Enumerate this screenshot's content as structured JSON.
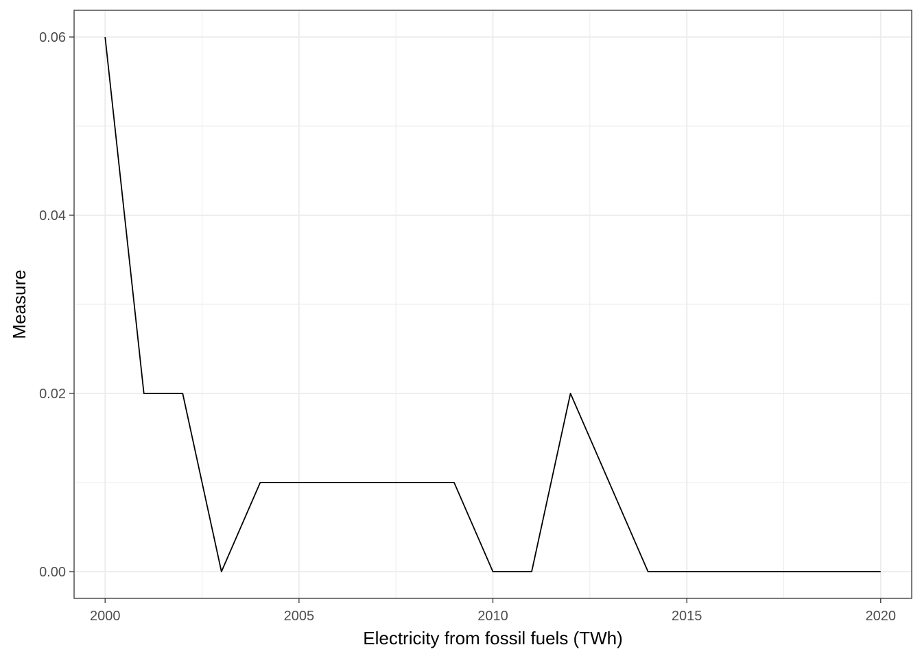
{
  "chart_data": {
    "type": "line",
    "title": "",
    "xlabel": "Electricity from fossil fuels (TWh)",
    "ylabel": "Measure",
    "x": [
      2000,
      2001,
      2002,
      2003,
      2004,
      2005,
      2006,
      2007,
      2008,
      2009,
      2010,
      2011,
      2012,
      2013,
      2014,
      2015,
      2016,
      2017,
      2018,
      2019,
      2020
    ],
    "series": [
      {
        "values": [
          0.06,
          0.02,
          0.02,
          0.0,
          0.01,
          0.01,
          0.01,
          0.01,
          0.01,
          0.01,
          0.0,
          0.0,
          0.02,
          0.01,
          0.0,
          0.0,
          0.0,
          0.0,
          0.0,
          0.0,
          0.0
        ]
      }
    ],
    "xlim": [
      1999.2,
      2020.8
    ],
    "ylim": [
      -0.003,
      0.063
    ],
    "x_ticks": [
      2000,
      2005,
      2010,
      2015,
      2020
    ],
    "x_tick_labels": [
      "2000",
      "2005",
      "2010",
      "2015",
      "2020"
    ],
    "y_ticks": [
      0.0,
      0.02,
      0.04,
      0.06
    ],
    "y_tick_labels": [
      "0.00",
      "0.02",
      "0.04",
      "0.06"
    ],
    "x_minor_ticks": [
      2002.5,
      2007.5,
      2012.5,
      2017.5
    ],
    "y_minor_ticks": [
      0.01,
      0.03,
      0.05
    ],
    "grid": true,
    "legend": "none",
    "colors": {
      "line": "#000000",
      "grid": "#ebebeb",
      "panel_border": "#333333",
      "tick_text": "#4d4d4d"
    }
  }
}
